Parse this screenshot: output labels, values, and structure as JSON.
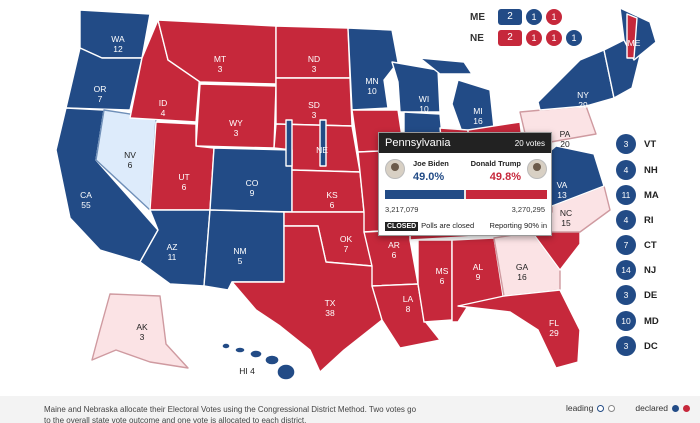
{
  "colors": {
    "democrat": "#224b86",
    "republican": "#c6283b",
    "leaning_democrat": "#ddebfb",
    "leaning_republican": "#fbe3e5"
  },
  "states": [
    {
      "abbr": "WA",
      "ev": "12",
      "status": "declared-dem"
    },
    {
      "abbr": "OR",
      "ev": "7",
      "status": "declared-dem"
    },
    {
      "abbr": "CA",
      "ev": "55",
      "status": "declared-dem"
    },
    {
      "abbr": "NV",
      "ev": "6",
      "status": "leading-dem"
    },
    {
      "abbr": "ID",
      "ev": "4",
      "status": "declared-rep"
    },
    {
      "abbr": "MT",
      "ev": "3",
      "status": "declared-rep"
    },
    {
      "abbr": "WY",
      "ev": "3",
      "status": "declared-rep"
    },
    {
      "abbr": "UT",
      "ev": "6",
      "status": "declared-rep"
    },
    {
      "abbr": "CO",
      "ev": "9",
      "status": "declared-dem"
    },
    {
      "abbr": "AZ",
      "ev": "11",
      "status": "declared-dem"
    },
    {
      "abbr": "NM",
      "ev": "5",
      "status": "declared-dem"
    },
    {
      "abbr": "ND",
      "ev": "3",
      "status": "declared-rep"
    },
    {
      "abbr": "SD",
      "ev": "3",
      "status": "declared-rep"
    },
    {
      "abbr": "NE",
      "ev": "",
      "status": "declared-rep"
    },
    {
      "abbr": "KS",
      "ev": "6",
      "status": "declared-rep"
    },
    {
      "abbr": "OK",
      "ev": "7",
      "status": "declared-rep"
    },
    {
      "abbr": "TX",
      "ev": "38",
      "status": "declared-rep"
    },
    {
      "abbr": "MN",
      "ev": "10",
      "status": "declared-dem"
    },
    {
      "abbr": "WI",
      "ev": "10",
      "status": "declared-dem"
    },
    {
      "abbr": "MI",
      "ev": "16",
      "status": "declared-dem"
    },
    {
      "abbr": "AR",
      "ev": "6",
      "status": "declared-rep"
    },
    {
      "abbr": "LA",
      "ev": "8",
      "status": "declared-rep"
    },
    {
      "abbr": "MS",
      "ev": "6",
      "status": "declared-rep"
    },
    {
      "abbr": "AL",
      "ev": "9",
      "status": "declared-rep"
    },
    {
      "abbr": "GA",
      "ev": "16",
      "status": "leading-rep"
    },
    {
      "abbr": "FL",
      "ev": "29",
      "status": "declared-rep"
    },
    {
      "abbr": "NC",
      "ev": "15",
      "status": "leading-rep"
    },
    {
      "abbr": "VA",
      "ev": "13",
      "status": "declared-dem"
    },
    {
      "abbr": "PA",
      "ev": "20",
      "status": "leading-rep"
    },
    {
      "abbr": "NY",
      "ev": "29",
      "status": "declared-dem"
    },
    {
      "abbr": "ME",
      "ev": "",
      "status": "declared-dem"
    },
    {
      "abbr": "AK",
      "ev": "3",
      "status": "leading-rep"
    },
    {
      "abbr": "HI",
      "ev": "4",
      "status": "declared-dem"
    }
  ],
  "district_rows": [
    {
      "abbr": "ME",
      "total": "2",
      "total_party": "dem",
      "districts": [
        {
          "ev": "1",
          "party": "dem"
        },
        {
          "ev": "1",
          "party": "rep"
        }
      ]
    },
    {
      "abbr": "NE",
      "total": "2",
      "total_party": "rep",
      "districts": [
        {
          "ev": "1",
          "party": "rep"
        },
        {
          "ev": "1",
          "party": "rep"
        },
        {
          "ev": "1",
          "party": "dem"
        }
      ]
    }
  ],
  "small_states": [
    {
      "ev": "3",
      "abbr": "VT"
    },
    {
      "ev": "4",
      "abbr": "NH"
    },
    {
      "ev": "11",
      "abbr": "MA"
    },
    {
      "ev": "4",
      "abbr": "RI"
    },
    {
      "ev": "7",
      "abbr": "CT"
    },
    {
      "ev": "14",
      "abbr": "NJ"
    },
    {
      "ev": "3",
      "abbr": "DE"
    },
    {
      "ev": "10",
      "abbr": "MD"
    },
    {
      "ev": "3",
      "abbr": "DC"
    }
  ],
  "tooltip": {
    "state": "Pennsylvania",
    "votes": "20 votes",
    "candidate_a": {
      "name": "Joe Biden",
      "pct": "49.0%",
      "count": "3,217,079",
      "share": 0.49
    },
    "candidate_b": {
      "name": "Donald Trump",
      "pct": "49.8%",
      "count": "3,270,295",
      "share": 0.498
    },
    "closed_tag": "CLOSED",
    "polls_text": "Polls are closed",
    "reporting": "Reporting 90% in"
  },
  "footer": {
    "note": "Maine and Nebraska allocate their Electoral Votes using the Congressional District Method. Two votes go to the overall state vote outcome and one vote is allocated to each district.",
    "leading_label": "leading",
    "declared_label": "declared"
  }
}
